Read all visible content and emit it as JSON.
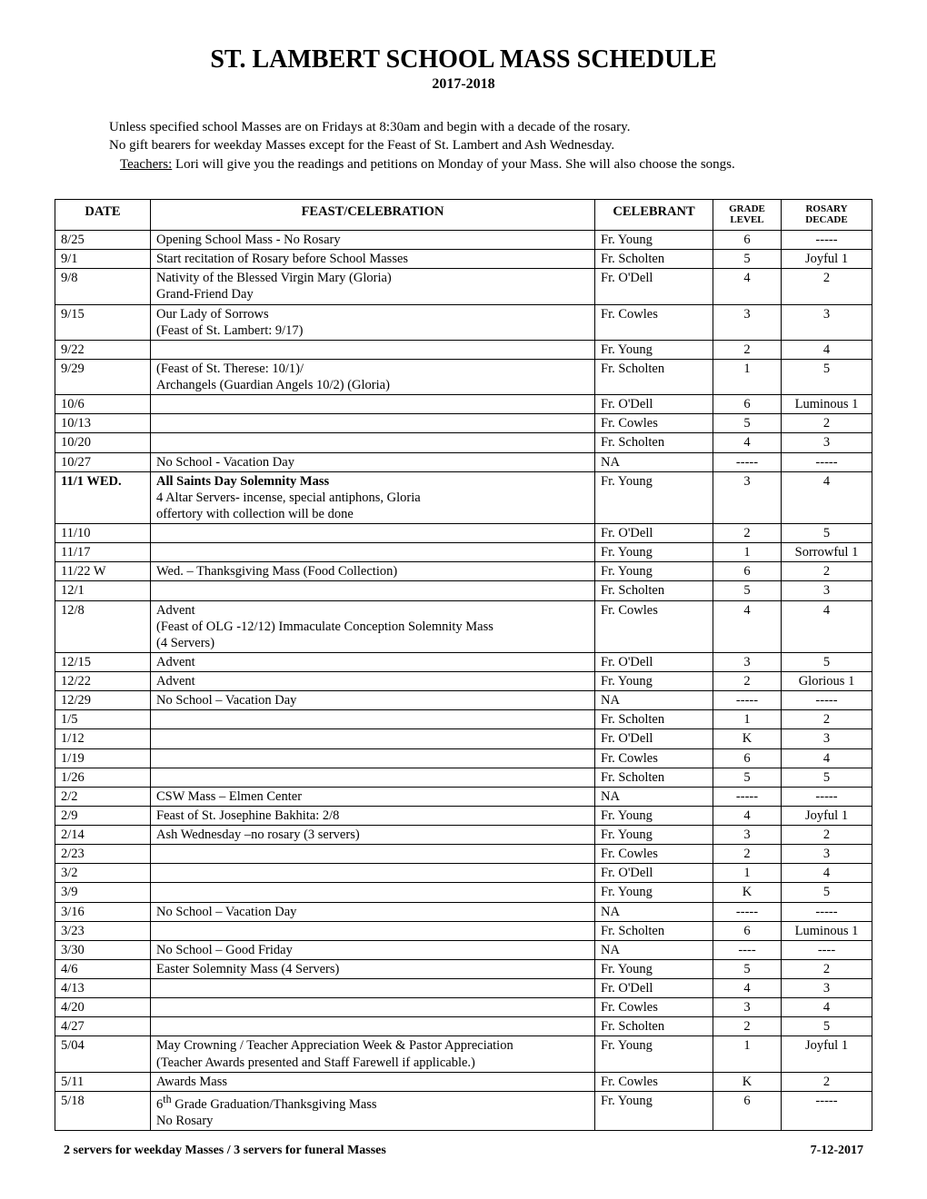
{
  "title": "ST. LAMBERT SCHOOL MASS SCHEDULE",
  "subtitle": "2017-2018",
  "notes": {
    "line1": "Unless specified school Masses are on Fridays at 8:30am and begin with a decade of the rosary.",
    "line2": "No gift bearers for weekday Masses except for the Feast of St. Lambert and Ash Wednesday.",
    "line3_label": "Teachers:",
    "line3_rest": " Lori will give you the readings and petitions on Monday of your Mass.  She will also choose the songs."
  },
  "headers": {
    "date": "DATE",
    "feast": "FEAST/CELEBRATION",
    "celebrant": "CELEBRANT",
    "grade": "GRADE LEVEL",
    "rosary": "ROSARY DECADE"
  },
  "rows": [
    {
      "date": "8/25",
      "feast": "Opening School Mass - No Rosary",
      "celebrant": "Fr. Young",
      "grade": "6",
      "rosary": "-----"
    },
    {
      "date": "9/1",
      "feast": "Start recitation of Rosary before School Masses",
      "celebrant": "Fr. Scholten",
      "grade": "5",
      "rosary": "Joyful 1"
    },
    {
      "date": "9/8",
      "feast": "Nativity of the Blessed Virgin Mary (Gloria)\nGrand-Friend Day",
      "celebrant": "Fr. O'Dell",
      "grade": "4",
      "rosary": "2"
    },
    {
      "date": "9/15",
      "feast": "Our Lady of Sorrows\n(Feast of St. Lambert: 9/17)",
      "celebrant": "Fr. Cowles",
      "grade": "3",
      "rosary": "3"
    },
    {
      "date": "9/22",
      "feast": "",
      "celebrant": "Fr. Young",
      "grade": "2",
      "rosary": "4"
    },
    {
      "date": "9/29",
      "feast": "(Feast of St. Therese: 10/1)/\nArchangels (Guardian Angels 10/2)  (Gloria)",
      "celebrant": "Fr. Scholten",
      "grade": "1",
      "rosary": "5"
    },
    {
      "date": "10/6",
      "feast": "",
      "celebrant": "Fr. O'Dell",
      "grade": "6",
      "rosary": "Luminous 1"
    },
    {
      "date": "10/13",
      "feast": "",
      "celebrant": "Fr. Cowles",
      "grade": "5",
      "rosary": "2"
    },
    {
      "date": "10/20",
      "feast": "",
      "celebrant": "Fr. Scholten",
      "grade": "4",
      "rosary": "3"
    },
    {
      "date": "10/27",
      "feast": "No School - Vacation Day",
      "celebrant": "NA",
      "grade": "-----",
      "rosary": "-----"
    },
    {
      "date": "11/1   WED.",
      "bold": true,
      "feast": "All Saints Day  Solemnity Mass",
      "feast2": "4 Altar Servers-  incense, special antiphons, Gloria\noffertory with collection will be done",
      "celebrant": "Fr. Young",
      "grade": "3",
      "rosary": "4"
    },
    {
      "date": "11/10",
      "feast": "",
      "celebrant": "Fr. O'Dell",
      "grade": "2",
      "rosary": "5"
    },
    {
      "date": "11/17",
      "feast": "",
      "celebrant": "Fr. Young",
      "grade": "1",
      "rosary": "Sorrowful 1"
    },
    {
      "date": "11/22  W",
      "feast": "Wed. – Thanksgiving Mass  (Food Collection)",
      "celebrant": "Fr. Young",
      "grade": "6",
      "rosary": "2"
    },
    {
      "date": "12/1",
      "feast": "",
      "celebrant": "Fr. Scholten",
      "grade": "5",
      "rosary": "3"
    },
    {
      "date": "12/8",
      "feast": "Advent\n(Feast of OLG -12/12) Immaculate Conception Solemnity Mass\n(4 Servers)",
      "celebrant": "Fr. Cowles",
      "grade": "4",
      "rosary": "4"
    },
    {
      "date": "12/15",
      "feast": "Advent",
      "celebrant": "Fr. O'Dell",
      "grade": "3",
      "rosary": "5"
    },
    {
      "date": "12/22",
      "feast": "Advent",
      "celebrant": "Fr. Young",
      "grade": "2",
      "rosary": "Glorious 1"
    },
    {
      "date": "12/29",
      "feast": "No School – Vacation Day",
      "celebrant": "NA",
      "grade": "-----",
      "rosary": "-----"
    },
    {
      "date": "1/5",
      "feast": "",
      "celebrant": "Fr. Scholten",
      "grade": "1",
      "rosary": "2"
    },
    {
      "date": "1/12",
      "feast": "",
      "celebrant": "Fr. O'Dell",
      "grade": "K",
      "rosary": "3"
    },
    {
      "date": "1/19",
      "feast": "",
      "celebrant": "Fr. Cowles",
      "grade": "6",
      "rosary": "4"
    },
    {
      "date": "1/26",
      "feast": "",
      "celebrant": "Fr. Scholten",
      "grade": "5",
      "rosary": "5"
    },
    {
      "date": "2/2",
      "feast": "CSW Mass – Elmen Center",
      "celebrant": "NA",
      "grade": "-----",
      "rosary": "-----"
    },
    {
      "date": "2/9",
      "feast": "Feast of St. Josephine Bakhita: 2/8",
      "celebrant": "Fr. Young",
      "grade": "4",
      "rosary": "Joyful 1"
    },
    {
      "date": "2/14",
      "feast": "Ash Wednesday –no rosary (3 servers)",
      "celebrant": "Fr. Young",
      "grade": "3",
      "rosary": "2"
    },
    {
      "date": "2/23",
      "feast": "",
      "celebrant": "Fr. Cowles",
      "grade": "2",
      "rosary": "3"
    },
    {
      "date": "3/2",
      "feast": "",
      "celebrant": "Fr. O'Dell",
      "grade": "1",
      "rosary": "4"
    },
    {
      "date": "3/9",
      "feast": "",
      "celebrant": "Fr. Young",
      "grade": "K",
      "rosary": "5"
    },
    {
      "date": "3/16",
      "feast": "No School – Vacation Day",
      "celebrant": "NA",
      "grade": "-----",
      "rosary": "-----"
    },
    {
      "date": "3/23",
      "feast": "",
      "celebrant": "Fr. Scholten",
      "grade": "6",
      "rosary": "Luminous 1"
    },
    {
      "date": "3/30",
      "feast": "No School – Good Friday",
      "celebrant": "NA",
      "grade": "----",
      "rosary": "----"
    },
    {
      "date": "4/6",
      "feast": "Easter Solemnity Mass (4 Servers)",
      "celebrant": "Fr. Young",
      "grade": "5",
      "rosary": "2"
    },
    {
      "date": "4/13",
      "feast": "",
      "celebrant": "Fr. O'Dell",
      "grade": "4",
      "rosary": "3"
    },
    {
      "date": "4/20",
      "feast": "",
      "celebrant": "Fr. Cowles",
      "grade": "3",
      "rosary": "4"
    },
    {
      "date": "4/27",
      "feast": "",
      "celebrant": "Fr. Scholten",
      "grade": "2",
      "rosary": "5"
    },
    {
      "date": "5/04",
      "feast": "May Crowning  / Teacher Appreciation Week & Pastor Appreciation\n(Teacher Awards presented and Staff Farewell if applicable.)",
      "celebrant": "Fr. Young",
      "grade": "1",
      "rosary": "Joyful 1"
    },
    {
      "date": "5/11",
      "feast": "Awards Mass",
      "celebrant": "Fr. Cowles",
      "grade": "K",
      "rosary": "2"
    },
    {
      "date": "5/18",
      "feast_html": "6<sup>th</sup> Grade Graduation/Thanksgiving Mass<br>No Rosary",
      "celebrant": "Fr. Young",
      "grade": "6",
      "rosary": "-----"
    }
  ],
  "footer": {
    "left": "2 servers for weekday Masses / 3 servers for funeral Masses",
    "right": "7-12-2017"
  }
}
